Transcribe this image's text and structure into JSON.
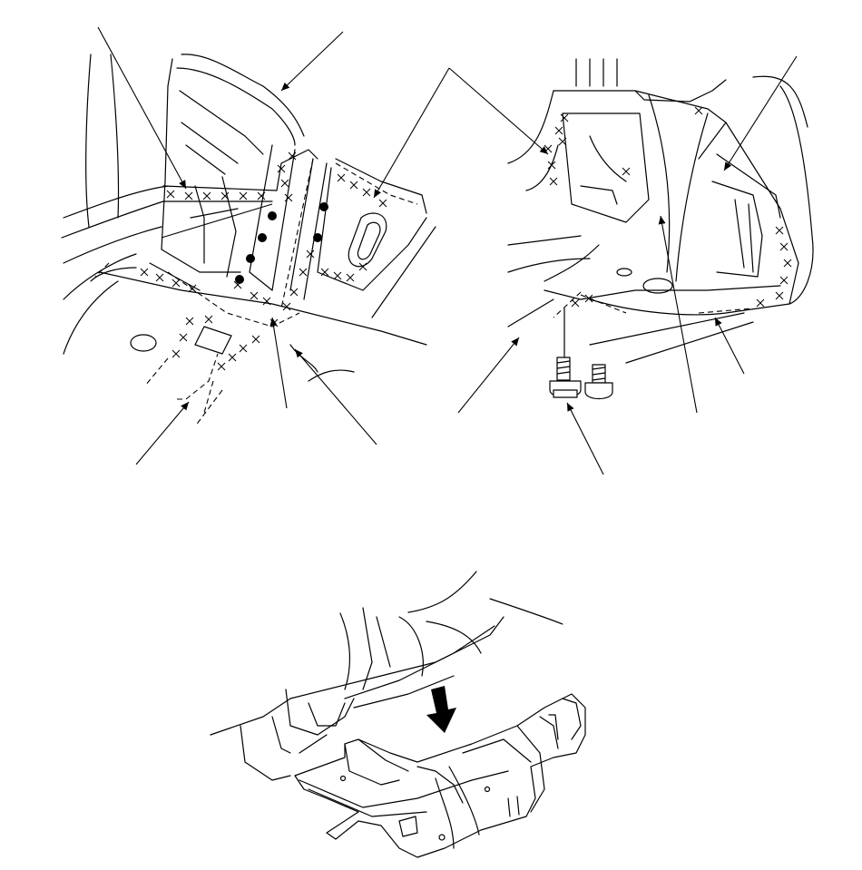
{
  "figure": {
    "panels": [
      "upper-left-floor-detail",
      "upper-right-floor-detail",
      "lower-floor-pan-install"
    ],
    "symbols": {
      "weld_point": "x-mark",
      "plug_weld": "solid-dot",
      "install_direction": "down-arrow"
    }
  }
}
